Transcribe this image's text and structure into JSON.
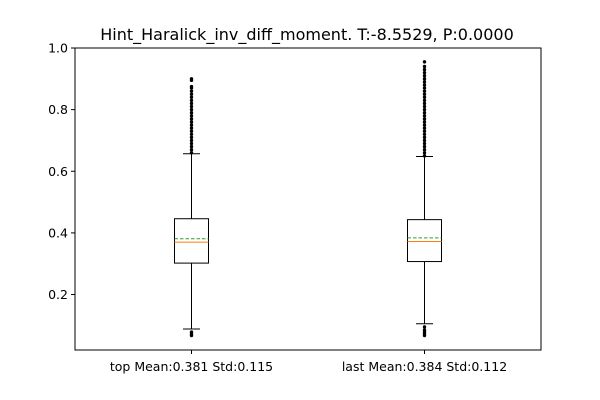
{
  "chart_data": {
    "type": "box",
    "title": "Hint_Haralick_inv_diff_moment. T:-8.5529, P:0.0000",
    "xlabel": "",
    "ylabel": "",
    "categories": [
      "top Mean:0.381 Std:0.115",
      "last Mean:0.384 Std:0.112"
    ],
    "y_ticks": [
      "0.2",
      "0.4",
      "0.6",
      "0.8",
      "1.0"
    ],
    "ylim": [
      0.02,
      1.0
    ],
    "grid": false,
    "boxes": [
      {
        "label": "top Mean:0.381 Std:0.115",
        "whisker_low": 0.088,
        "q1": 0.302,
        "median": 0.37,
        "mean": 0.381,
        "q3": 0.446,
        "whisker_high": 0.657,
        "outliers_high": [
          0.66,
          0.67,
          0.68,
          0.69,
          0.7,
          0.71,
          0.72,
          0.73,
          0.74,
          0.75,
          0.76,
          0.77,
          0.78,
          0.79,
          0.8,
          0.81,
          0.82,
          0.83,
          0.84,
          0.85,
          0.86,
          0.87,
          0.875,
          0.895,
          0.9
        ],
        "outliers_low": [
          0.078,
          0.072,
          0.067
        ]
      },
      {
        "label": "last Mean:0.384 Std:0.112",
        "whisker_low": 0.105,
        "q1": 0.307,
        "median": 0.372,
        "mean": 0.384,
        "q3": 0.443,
        "whisker_high": 0.648,
        "outliers_high": [
          0.65,
          0.66,
          0.67,
          0.68,
          0.69,
          0.7,
          0.71,
          0.72,
          0.73,
          0.74,
          0.75,
          0.76,
          0.77,
          0.78,
          0.79,
          0.8,
          0.81,
          0.82,
          0.83,
          0.84,
          0.85,
          0.86,
          0.87,
          0.88,
          0.89,
          0.9,
          0.91,
          0.92,
          0.93,
          0.94,
          0.955
        ],
        "outliers_low": [
          0.095,
          0.085,
          0.078,
          0.072,
          0.067
        ]
      }
    ],
    "colors": {
      "median": "#ff7f0e",
      "mean": "#2ca02c",
      "box": "#000000"
    }
  }
}
